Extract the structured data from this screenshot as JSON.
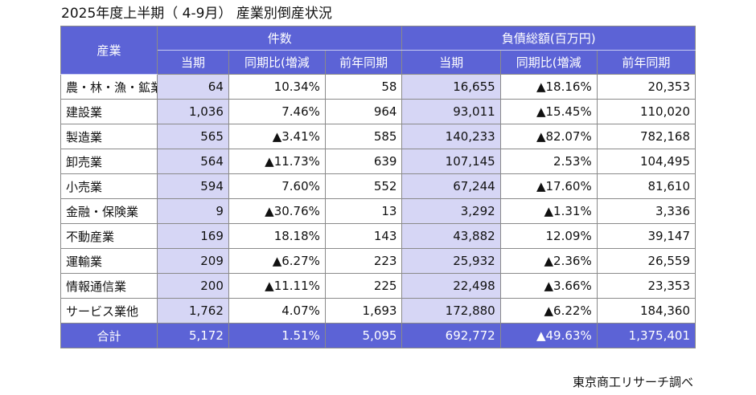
{
  "title": "2025年度上半期（ 4-9月） 産業別倒産状況",
  "credit": "東京商工リサーチ調べ",
  "headers": {
    "industry": "産業",
    "count_group": "件数",
    "debt_group": "負債総額(百万円)",
    "current": "当期",
    "yoy": "同期比(増減",
    "prev": "前年同期"
  },
  "rows": [
    {
      "industry": "農・林・漁・鉱業",
      "count": "64",
      "count_yoy": "10.34%",
      "count_prev": "58",
      "debt": "16,655",
      "debt_yoy": "▲18.16%",
      "debt_prev": "20,353"
    },
    {
      "industry": "建設業",
      "count": "1,036",
      "count_yoy": "7.46%",
      "count_prev": "964",
      "debt": "93,011",
      "debt_yoy": "▲15.45%",
      "debt_prev": "110,020"
    },
    {
      "industry": "製造業",
      "count": "565",
      "count_yoy": "▲3.41%",
      "count_prev": "585",
      "debt": "140,233",
      "debt_yoy": "▲82.07%",
      "debt_prev": "782,168"
    },
    {
      "industry": "卸売業",
      "count": "564",
      "count_yoy": "▲11.73%",
      "count_prev": "639",
      "debt": "107,145",
      "debt_yoy": "2.53%",
      "debt_prev": "104,495"
    },
    {
      "industry": "小売業",
      "count": "594",
      "count_yoy": "7.60%",
      "count_prev": "552",
      "debt": "67,244",
      "debt_yoy": "▲17.60%",
      "debt_prev": "81,610"
    },
    {
      "industry": "金融・保険業",
      "count": "9",
      "count_yoy": "▲30.76%",
      "count_prev": "13",
      "debt": "3,292",
      "debt_yoy": "▲1.31%",
      "debt_prev": "3,336"
    },
    {
      "industry": "不動産業",
      "count": "169",
      "count_yoy": "18.18%",
      "count_prev": "143",
      "debt": "43,882",
      "debt_yoy": "12.09%",
      "debt_prev": "39,147"
    },
    {
      "industry": "運輸業",
      "count": "209",
      "count_yoy": "▲6.27%",
      "count_prev": "223",
      "debt": "25,932",
      "debt_yoy": "▲2.36%",
      "debt_prev": "26,559"
    },
    {
      "industry": "情報通信業",
      "count": "200",
      "count_yoy": "▲11.11%",
      "count_prev": "225",
      "debt": "22,498",
      "debt_yoy": "▲3.66%",
      "debt_prev": "23,353"
    },
    {
      "industry": "サービス業他",
      "count": "1,762",
      "count_yoy": "4.07%",
      "count_prev": "1,693",
      "debt": "172,880",
      "debt_yoy": "▲6.22%",
      "debt_prev": "184,360"
    }
  ],
  "total": {
    "industry": "合計",
    "count": "5,172",
    "count_yoy": "1.51%",
    "count_prev": "5,095",
    "debt": "692,772",
    "debt_yoy": "▲49.63%",
    "debt_prev": "1,375,401"
  }
}
